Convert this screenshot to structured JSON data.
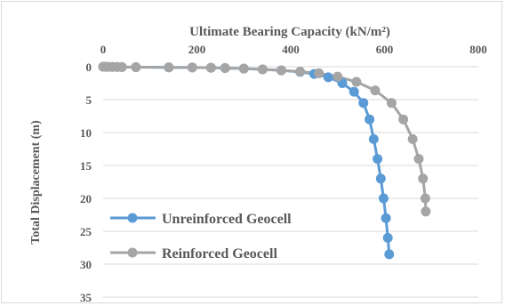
{
  "chart_data": {
    "type": "line",
    "title": "",
    "xlabel": "Ultimate Bearing Capacity (kN/m²)",
    "ylabel": "Total Displacement (m)",
    "x_axis_position": "top",
    "y_axis_inverted": true,
    "xlim": [
      0,
      800
    ],
    "ylim": [
      0,
      35
    ],
    "xticks": [
      "0",
      "200",
      "400",
      "600",
      "800"
    ],
    "yticks": [
      "0",
      "5",
      "10",
      "15",
      "20",
      "25",
      "30",
      "35"
    ],
    "grid": "horizontal",
    "legend_placement": "bottom-left",
    "series": [
      {
        "name": "Unreinforced Geocell",
        "color": "#5b9bd5",
        "points": [
          [
            0,
            0
          ],
          [
            5,
            0.01
          ],
          [
            10,
            0.02
          ],
          [
            20,
            0.03
          ],
          [
            30,
            0.04
          ],
          [
            40,
            0.05
          ],
          [
            70,
            0.07
          ],
          [
            140,
            0.1
          ],
          [
            190,
            0.12
          ],
          [
            230,
            0.15
          ],
          [
            260,
            0.2
          ],
          [
            300,
            0.28
          ],
          [
            340,
            0.4
          ],
          [
            380,
            0.55
          ],
          [
            420,
            0.8
          ],
          [
            450,
            1.1
          ],
          [
            480,
            1.6
          ],
          [
            510,
            2.5
          ],
          [
            535,
            3.8
          ],
          [
            555,
            5.5
          ],
          [
            568,
            8
          ],
          [
            577,
            11
          ],
          [
            585,
            14
          ],
          [
            592,
            17
          ],
          [
            598,
            20
          ],
          [
            603,
            23
          ],
          [
            607,
            26
          ],
          [
            610,
            28.5
          ]
        ]
      },
      {
        "name": "Reinforced Geocell",
        "color": "#a5a5a5",
        "points": [
          [
            0,
            0
          ],
          [
            5,
            0.01
          ],
          [
            10,
            0.02
          ],
          [
            20,
            0.03
          ],
          [
            30,
            0.04
          ],
          [
            40,
            0.05
          ],
          [
            70,
            0.07
          ],
          [
            140,
            0.1
          ],
          [
            190,
            0.12
          ],
          [
            230,
            0.15
          ],
          [
            260,
            0.2
          ],
          [
            300,
            0.28
          ],
          [
            340,
            0.4
          ],
          [
            380,
            0.55
          ],
          [
            420,
            0.75
          ],
          [
            460,
            1.0
          ],
          [
            500,
            1.5
          ],
          [
            540,
            2.3
          ],
          [
            580,
            3.6
          ],
          [
            615,
            5.5
          ],
          [
            640,
            8
          ],
          [
            660,
            11
          ],
          [
            673,
            14
          ],
          [
            682,
            17
          ],
          [
            687,
            20
          ],
          [
            688,
            22
          ]
        ]
      }
    ]
  }
}
